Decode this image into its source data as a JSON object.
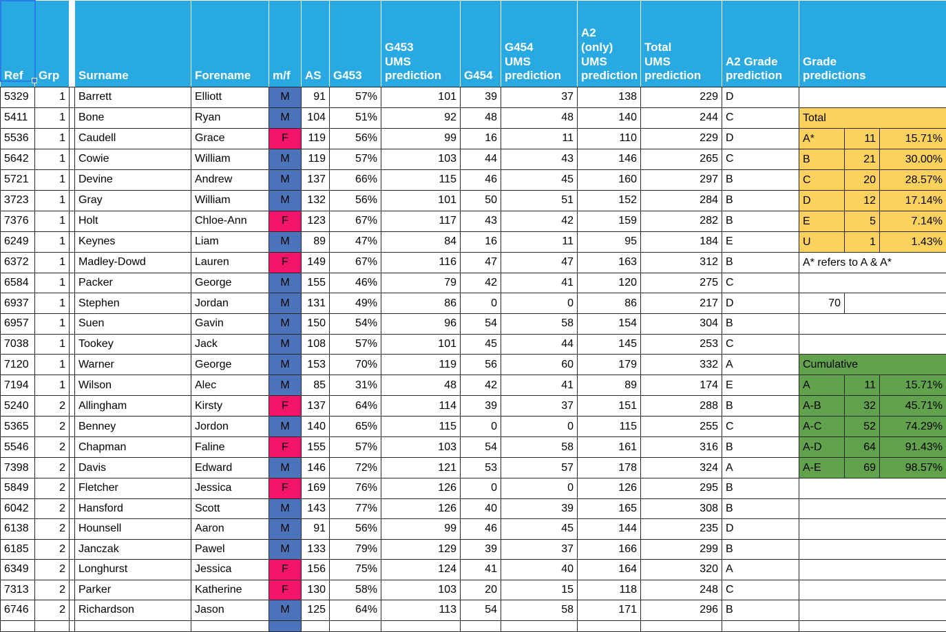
{
  "columns": [
    {
      "id": "ref",
      "label": "Ref"
    },
    {
      "id": "grp",
      "label": "Grp"
    },
    {
      "id": "spacer",
      "label": ""
    },
    {
      "id": "surname",
      "label": "Surname"
    },
    {
      "id": "forename",
      "label": "Forename"
    },
    {
      "id": "mf",
      "label": "m/f"
    },
    {
      "id": "as",
      "label": "AS"
    },
    {
      "id": "g453",
      "label": "G453"
    },
    {
      "id": "g453ums",
      "label": "G453\nUMS\nprediction"
    },
    {
      "id": "g454",
      "label": "G454"
    },
    {
      "id": "g454ums",
      "label": "G454\nUMS\nprediction"
    },
    {
      "id": "a2ums",
      "label": "A2\n(only)\nUMS\nprediction"
    },
    {
      "id": "totalums",
      "label": "Total\nUMS\nprediction"
    },
    {
      "id": "a2grade",
      "label": "A2 Grade\nprediction"
    },
    {
      "id": "gp",
      "label": "Grade\npredictions"
    }
  ],
  "row_fields": [
    "ref",
    "grp",
    "surname",
    "forename",
    "mf",
    "as",
    "g453_pct",
    "g453_ums_prediction",
    "g454",
    "g454_ums_prediction",
    "a2_only_ums_prediction",
    "total_ums_prediction",
    "a2_grade_prediction"
  ],
  "rows": [
    [
      "5329",
      "1",
      "Barrett",
      "Elliott",
      "M",
      "91",
      "57%",
      "101",
      "39",
      "37",
      "138",
      "229",
      "D"
    ],
    [
      "5411",
      "1",
      "Bone",
      "Ryan",
      "M",
      "104",
      "51%",
      "92",
      "48",
      "48",
      "140",
      "244",
      "C"
    ],
    [
      "5536",
      "1",
      "Caudell",
      "Grace",
      "F",
      "119",
      "56%",
      "99",
      "16",
      "11",
      "110",
      "229",
      "D"
    ],
    [
      "5642",
      "1",
      "Cowie",
      "William",
      "M",
      "119",
      "57%",
      "103",
      "44",
      "43",
      "146",
      "265",
      "C"
    ],
    [
      "5721",
      "1",
      "Devine",
      "Andrew",
      "M",
      "137",
      "66%",
      "115",
      "46",
      "45",
      "160",
      "297",
      "B"
    ],
    [
      "3723",
      "1",
      "Gray",
      "William",
      "M",
      "132",
      "56%",
      "101",
      "50",
      "51",
      "152",
      "284",
      "B"
    ],
    [
      "7376",
      "1",
      "Holt",
      "Chloe-Ann",
      "F",
      "123",
      "67%",
      "117",
      "43",
      "42",
      "159",
      "282",
      "B"
    ],
    [
      "6249",
      "1",
      "Keynes",
      "Liam",
      "M",
      "89",
      "47%",
      "84",
      "16",
      "11",
      "95",
      "184",
      "E"
    ],
    [
      "6372",
      "1",
      "Madley-Dowd",
      "Lauren",
      "F",
      "149",
      "67%",
      "116",
      "47",
      "47",
      "163",
      "312",
      "B"
    ],
    [
      "6584",
      "1",
      "Packer",
      "George",
      "M",
      "155",
      "46%",
      "79",
      "42",
      "41",
      "120",
      "275",
      "C"
    ],
    [
      "6937",
      "1",
      "Stephen",
      "Jordan",
      "M",
      "131",
      "49%",
      "86",
      "0",
      "0",
      "86",
      "217",
      "D"
    ],
    [
      "6957",
      "1",
      "Suen",
      "Gavin",
      "M",
      "150",
      "54%",
      "96",
      "54",
      "58",
      "154",
      "304",
      "B"
    ],
    [
      "7038",
      "1",
      "Tookey",
      "Jack",
      "M",
      "108",
      "57%",
      "101",
      "45",
      "44",
      "145",
      "253",
      "C"
    ],
    [
      "7120",
      "1",
      "Warner",
      "George",
      "M",
      "153",
      "70%",
      "119",
      "56",
      "60",
      "179",
      "332",
      "A"
    ],
    [
      "7194",
      "1",
      "Wilson",
      "Alec",
      "M",
      "85",
      "31%",
      "48",
      "42",
      "41",
      "89",
      "174",
      "E"
    ],
    [
      "5240",
      "2",
      "Allingham",
      "Kirsty",
      "F",
      "137",
      "64%",
      "114",
      "39",
      "37",
      "151",
      "288",
      "B"
    ],
    [
      "5365",
      "2",
      "Benney",
      "Jordon",
      "M",
      "140",
      "65%",
      "115",
      "0",
      "0",
      "115",
      "255",
      "C"
    ],
    [
      "5546",
      "2",
      "Chapman",
      "Faline",
      "F",
      "155",
      "57%",
      "103",
      "54",
      "58",
      "161",
      "316",
      "B"
    ],
    [
      "7398",
      "2",
      "Davis",
      "Edward",
      "M",
      "146",
      "72%",
      "121",
      "53",
      "57",
      "178",
      "324",
      "A"
    ],
    [
      "5849",
      "2",
      "Fletcher",
      "Jessica",
      "F",
      "169",
      "76%",
      "126",
      "0",
      "0",
      "126",
      "295",
      "B"
    ],
    [
      "6042",
      "2",
      "Hansford",
      "Scott",
      "M",
      "143",
      "77%",
      "126",
      "40",
      "39",
      "165",
      "308",
      "B"
    ],
    [
      "6138",
      "2",
      "Hounsell",
      "Aaron",
      "M",
      "91",
      "56%",
      "99",
      "46",
      "45",
      "144",
      "235",
      "D"
    ],
    [
      "6185",
      "2",
      "Janczak",
      "Pawel",
      "M",
      "133",
      "79%",
      "129",
      "39",
      "37",
      "166",
      "299",
      "B"
    ],
    [
      "6349",
      "2",
      "Longhurst",
      "Jessica",
      "F",
      "156",
      "75%",
      "124",
      "41",
      "40",
      "164",
      "320",
      "A"
    ],
    [
      "7313",
      "2",
      "Parker",
      "Katherine",
      "F",
      "130",
      "58%",
      "103",
      "20",
      "15",
      "118",
      "248",
      "C"
    ],
    [
      "6746",
      "2",
      "Richardson",
      "Jason",
      "M",
      "125",
      "64%",
      "113",
      "54",
      "58",
      "171",
      "296",
      "B"
    ]
  ],
  "grade_summary": {
    "by_row": {
      "1": {
        "fill": "yellow",
        "label": "Total"
      },
      "2": {
        "fill": "yellow",
        "label": "A*",
        "count": "11",
        "pct": "15.71%"
      },
      "3": {
        "fill": "yellow",
        "label": "B",
        "count": "21",
        "pct": "30.00%"
      },
      "4": {
        "fill": "yellow",
        "label": "C",
        "count": "20",
        "pct": "28.57%"
      },
      "5": {
        "fill": "yellow",
        "label": "D",
        "count": "12",
        "pct": "17.14%"
      },
      "6": {
        "fill": "yellow",
        "label": "E",
        "count": "5",
        "pct": "7.14%"
      },
      "7": {
        "fill": "yellow",
        "label": "U",
        "count": "1",
        "pct": "1.43%"
      },
      "8": {
        "fill": "none",
        "note": "A* refers to A & A*"
      },
      "10": {
        "fill": "none",
        "count_total": "70"
      },
      "13": {
        "fill": "green",
        "label": "Cumulative"
      },
      "14": {
        "fill": "green",
        "label": "A",
        "count": "11",
        "pct": "15.71%"
      },
      "15": {
        "fill": "green",
        "label": "A-B",
        "count": "32",
        "pct": "45.71%"
      },
      "16": {
        "fill": "green",
        "label": "A-C",
        "count": "52",
        "pct": "74.29%"
      },
      "17": {
        "fill": "green",
        "label": "A-D",
        "count": "64",
        "pct": "91.43%"
      },
      "18": {
        "fill": "green",
        "label": "A-E",
        "count": "69",
        "pct": "98.57%"
      }
    }
  },
  "selection": {
    "region": "Ref-header-cell"
  },
  "colors": {
    "header_bg": "#29A9E2",
    "male_bg": "#4B74BA",
    "female_bg": "#F5146C",
    "total_block_bg": "#FCD15D",
    "cumulative_block_bg": "#62A24D",
    "grid_border": "#262626",
    "selection_border": "#2C7CE5"
  }
}
